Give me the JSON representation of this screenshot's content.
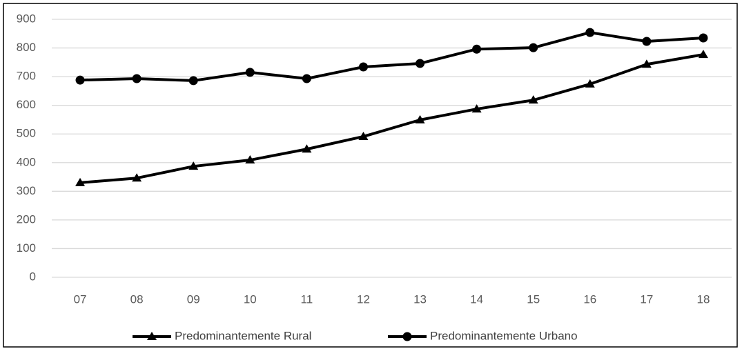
{
  "chart_data": {
    "type": "line",
    "categories": [
      "07",
      "08",
      "09",
      "10",
      "11",
      "12",
      "13",
      "14",
      "15",
      "16",
      "17",
      "18"
    ],
    "series": [
      {
        "name": "Predominantemente Rural",
        "color": "#000000",
        "marker": "triangle",
        "values": [
          330,
          346,
          387,
          409,
          447,
          491,
          549,
          587,
          618,
          674,
          743,
          777
        ]
      },
      {
        "name": "Predominantemente Urbano",
        "color": "#000000",
        "marker": "circle",
        "values": [
          688,
          693,
          686,
          715,
          693,
          734,
          746,
          796,
          801,
          854,
          823,
          835
        ]
      }
    ],
    "ylim": [
      0,
      900
    ],
    "yticks": [
      0,
      100,
      200,
      300,
      400,
      500,
      600,
      700,
      800,
      900
    ],
    "grid": true,
    "legend": "bottom"
  }
}
